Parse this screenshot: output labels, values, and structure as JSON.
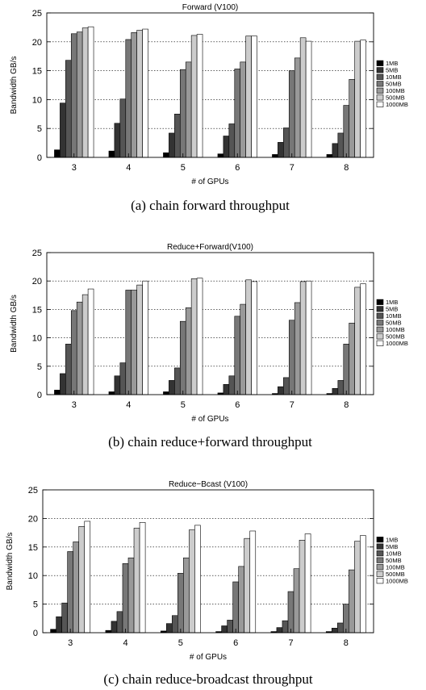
{
  "chart_data": [
    {
      "type": "bar",
      "title": "Forward (V100)",
      "caption": "(a) chain forward throughput",
      "xlabel": "# of GPUs",
      "ylabel": "Bandwidth GB/s",
      "ylim": [
        0,
        25
      ],
      "yticks": [
        0,
        5,
        10,
        15,
        20,
        25
      ],
      "grid": true,
      "legend_position": "right",
      "categories": [
        "3",
        "4",
        "5",
        "6",
        "7",
        "8"
      ],
      "series": [
        {
          "name": "1MB",
          "color": "#000000",
          "values": [
            1.3,
            1.1,
            0.8,
            0.6,
            0.5,
            0.5
          ]
        },
        {
          "name": "5MB",
          "color": "#333333",
          "values": [
            9.4,
            5.9,
            4.2,
            3.7,
            2.6,
            2.4
          ]
        },
        {
          "name": "10MB",
          "color": "#555555",
          "values": [
            16.8,
            10.1,
            7.5,
            5.8,
            5.1,
            4.2
          ]
        },
        {
          "name": "50MB",
          "color": "#777777",
          "values": [
            21.4,
            20.4,
            15.2,
            15.3,
            15.0,
            9.0
          ]
        },
        {
          "name": "100MB",
          "color": "#999999",
          "values": [
            21.7,
            21.6,
            16.5,
            16.5,
            17.2,
            13.5
          ]
        },
        {
          "name": "500MB",
          "color": "#cccccc",
          "values": [
            22.4,
            22.0,
            21.1,
            21.0,
            20.7,
            20.1
          ]
        },
        {
          "name": "1000MB",
          "color": "#ffffff",
          "values": [
            22.6,
            22.2,
            21.3,
            21.0,
            20.1,
            20.3
          ]
        }
      ]
    },
    {
      "type": "bar",
      "title": "Reduce+Forward(V100)",
      "caption": "(b) chain reduce+forward throughput",
      "xlabel": "# of GPUs",
      "ylabel": "Bandwidth GB/s",
      "ylim": [
        0,
        25
      ],
      "yticks": [
        0,
        5,
        10,
        15,
        20,
        25
      ],
      "grid": true,
      "legend_position": "right",
      "categories": [
        "3",
        "4",
        "5",
        "6",
        "7",
        "8"
      ],
      "series": [
        {
          "name": "1MB",
          "color": "#000000",
          "values": [
            0.8,
            0.5,
            0.5,
            0.3,
            0.2,
            0.2
          ]
        },
        {
          "name": "5MB",
          "color": "#333333",
          "values": [
            3.7,
            3.3,
            2.5,
            1.8,
            1.4,
            1.1
          ]
        },
        {
          "name": "10MB",
          "color": "#555555",
          "values": [
            8.9,
            5.6,
            4.7,
            3.3,
            3.0,
            2.5
          ]
        },
        {
          "name": "50MB",
          "color": "#777777",
          "values": [
            14.8,
            18.4,
            12.9,
            13.8,
            13.1,
            8.9
          ]
        },
        {
          "name": "100MB",
          "color": "#999999",
          "values": [
            16.3,
            18.4,
            15.3,
            15.9,
            16.2,
            12.6
          ]
        },
        {
          "name": "500MB",
          "color": "#cccccc",
          "values": [
            17.6,
            19.3,
            20.4,
            20.2,
            19.9,
            18.9
          ]
        },
        {
          "name": "1000MB",
          "color": "#ffffff",
          "values": [
            18.6,
            20.0,
            20.5,
            19.9,
            20.0,
            19.5
          ]
        }
      ]
    },
    {
      "type": "bar",
      "title": "Reduce−Bcast (V100)",
      "caption": "(c) chain reduce-broadcast throughput",
      "xlabel": "# of GPUs",
      "ylabel": "Bandwidth GB/s",
      "ylim": [
        0,
        25
      ],
      "yticks": [
        0,
        5,
        10,
        15,
        20,
        25
      ],
      "grid": true,
      "legend_position": "right",
      "categories": [
        "3",
        "4",
        "5",
        "6",
        "7",
        "8"
      ],
      "series": [
        {
          "name": "1MB",
          "color": "#000000",
          "values": [
            0.6,
            0.4,
            0.3,
            0.2,
            0.2,
            0.2
          ]
        },
        {
          "name": "5MB",
          "color": "#333333",
          "values": [
            2.8,
            2.0,
            1.6,
            1.2,
            0.9,
            0.8
          ]
        },
        {
          "name": "10MB",
          "color": "#555555",
          "values": [
            5.2,
            3.7,
            3.0,
            2.2,
            2.1,
            1.7
          ]
        },
        {
          "name": "50MB",
          "color": "#777777",
          "values": [
            14.2,
            12.1,
            10.4,
            8.9,
            7.2,
            5.0
          ]
        },
        {
          "name": "100MB",
          "color": "#999999",
          "values": [
            15.9,
            13.1,
            13.1,
            11.6,
            11.2,
            11.0
          ]
        },
        {
          "name": "500MB",
          "color": "#cccccc",
          "values": [
            18.6,
            18.3,
            18.0,
            16.5,
            16.2,
            16.0
          ]
        },
        {
          "name": "1000MB",
          "color": "#ffffff",
          "values": [
            19.5,
            19.3,
            18.8,
            17.8,
            17.3,
            17.0
          ]
        }
      ]
    }
  ]
}
